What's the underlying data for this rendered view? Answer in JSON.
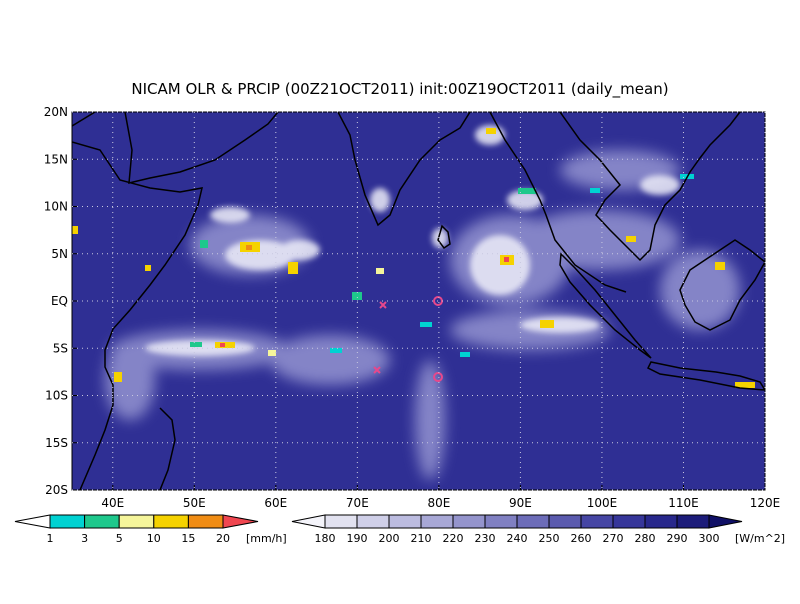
{
  "title": "NICAM OLR & PRCIP (00Z21OCT2011) init:00Z19OCT2011 (daily_mean)",
  "lon_range": [
    35,
    120
  ],
  "lat_range": [
    -20,
    20
  ],
  "lat_ticks": [
    {
      "value": 20,
      "label": "20N"
    },
    {
      "value": 15,
      "label": "15N"
    },
    {
      "value": 10,
      "label": "10N"
    },
    {
      "value": 5,
      "label": "5N"
    },
    {
      "value": 0,
      "label": "EQ"
    },
    {
      "value": -5,
      "label": "5S"
    },
    {
      "value": -10,
      "label": "10S"
    },
    {
      "value": -15,
      "label": "15S"
    },
    {
      "value": -20,
      "label": "20S"
    }
  ],
  "lon_ticks": [
    {
      "value": 40,
      "label": "40E"
    },
    {
      "value": 50,
      "label": "50E"
    },
    {
      "value": 60,
      "label": "60E"
    },
    {
      "value": 70,
      "label": "70E"
    },
    {
      "value": 80,
      "label": "80E"
    },
    {
      "value": 90,
      "label": "90E"
    },
    {
      "value": 100,
      "label": "100E"
    },
    {
      "value": 110,
      "label": "110E"
    },
    {
      "value": 120,
      "label": "120E"
    }
  ],
  "precip_colorbar": {
    "labels": [
      1,
      3,
      5,
      10,
      15,
      20
    ],
    "unit": "[mm/h]",
    "colors": [
      "#ffffff",
      "#00d2d2",
      "#1ec88c",
      "#f5f59b",
      "#f5d200",
      "#f08c14",
      "#f04650"
    ]
  },
  "olr_colorbar": {
    "labels": [
      180,
      190,
      200,
      210,
      220,
      230,
      240,
      250,
      260,
      270,
      280,
      290,
      300
    ],
    "unit": "[W/m^2]",
    "colors": [
      "#f4f4fa",
      "#e2e2f0",
      "#cfcfe8",
      "#bcbce0",
      "#a8a8d6",
      "#9494cc",
      "#8080c2",
      "#6c6cb8",
      "#5a5aae",
      "#4646a4",
      "#36369a",
      "#28288c",
      "#1c1c7a",
      "#101066"
    ]
  }
}
